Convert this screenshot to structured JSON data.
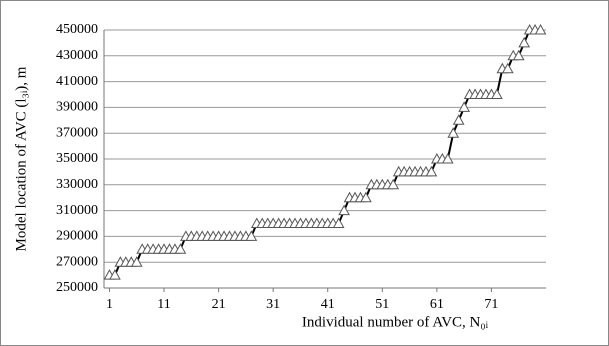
{
  "chart_data": {
    "type": "line",
    "y_label": "Model location of AVC (l₃ᵢ), m",
    "x_label": "Individual number of AVC, N₀ᵢ",
    "x": [
      1,
      2,
      3,
      4,
      5,
      6,
      7,
      8,
      9,
      10,
      11,
      12,
      13,
      14,
      15,
      16,
      17,
      18,
      19,
      20,
      21,
      22,
      23,
      24,
      25,
      26,
      27,
      28,
      29,
      30,
      31,
      32,
      33,
      34,
      35,
      36,
      37,
      38,
      39,
      40,
      41,
      42,
      43,
      44,
      45,
      46,
      47,
      48,
      49,
      50,
      51,
      52,
      53,
      54,
      55,
      56,
      57,
      58,
      59,
      60,
      61,
      62,
      63,
      64,
      65,
      66,
      67,
      68,
      69,
      70,
      71,
      72,
      73,
      74,
      75,
      76,
      77,
      78,
      79,
      80
    ],
    "values": [
      260000,
      260000,
      270000,
      270000,
      270000,
      270000,
      280000,
      280000,
      280000,
      280000,
      280000,
      280000,
      280000,
      280000,
      290000,
      290000,
      290000,
      290000,
      290000,
      290000,
      290000,
      290000,
      290000,
      290000,
      290000,
      290000,
      290000,
      300000,
      300000,
      300000,
      300000,
      300000,
      300000,
      300000,
      300000,
      300000,
      300000,
      300000,
      300000,
      300000,
      300000,
      300000,
      300000,
      310000,
      320000,
      320000,
      320000,
      320000,
      330000,
      330000,
      330000,
      330000,
      330000,
      340000,
      340000,
      340000,
      340000,
      340000,
      340000,
      340000,
      350000,
      350000,
      350000,
      370000,
      380000,
      390000,
      400000,
      400000,
      400000,
      400000,
      400000,
      400000,
      420000,
      420000,
      430000,
      430000,
      440000,
      450000,
      450000,
      450000
    ],
    "color": "#000000",
    "marker_color": "#ffffff",
    "xlim": [
      0,
      81
    ],
    "xticks": [
      1,
      11,
      21,
      31,
      41,
      51,
      61,
      71
    ],
    "ylim": [
      250000,
      450000
    ],
    "yticks": [
      250000,
      270000,
      290000,
      310000,
      330000,
      350000,
      370000,
      390000,
      410000,
      430000,
      450000
    ],
    "grid": true
  }
}
